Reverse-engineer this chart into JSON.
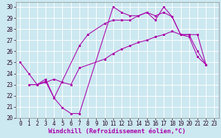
{
  "xlabel": "Windchill (Refroidissement éolien,°C)",
  "background_color": "#cce8f0",
  "grid_color": "#ffffff",
  "line_color": "#aa00aa",
  "xlim": [
    -0.5,
    23.5
  ],
  "ylim": [
    20,
    30.4
  ],
  "xticks": [
    0,
    1,
    2,
    3,
    4,
    5,
    6,
    7,
    8,
    9,
    10,
    11,
    12,
    13,
    14,
    15,
    16,
    17,
    18,
    19,
    20,
    21,
    22,
    23
  ],
  "yticks": [
    20,
    21,
    22,
    23,
    24,
    25,
    26,
    27,
    28,
    29,
    30
  ],
  "line1_x": [
    0,
    1,
    2,
    3,
    4,
    5,
    6,
    7,
    11,
    12,
    13,
    14,
    15,
    16,
    17,
    18,
    19,
    21,
    22
  ],
  "line1_y": [
    25.0,
    24.0,
    23.0,
    23.5,
    21.8,
    20.9,
    20.4,
    20.4,
    30.0,
    29.5,
    29.2,
    29.2,
    29.5,
    28.8,
    30.0,
    29.1,
    27.5,
    27.5,
    24.8
  ],
  "line2_x": [
    1,
    2,
    3,
    4,
    7,
    8,
    10,
    11,
    12,
    13,
    14,
    15,
    16,
    17,
    18,
    19,
    20,
    21,
    22
  ],
  "line2_y": [
    23.0,
    23.0,
    23.3,
    21.8,
    26.5,
    27.5,
    28.5,
    28.8,
    28.8,
    28.8,
    29.2,
    29.5,
    29.2,
    29.5,
    29.1,
    27.5,
    27.5,
    26.0,
    24.8
  ],
  "line3_x": [
    1,
    2,
    3,
    4,
    5,
    6,
    7,
    10,
    11,
    12,
    13,
    14,
    15,
    16,
    17,
    18,
    19,
    20,
    21,
    22
  ],
  "line3_y": [
    23.0,
    23.0,
    23.2,
    23.5,
    23.2,
    23.0,
    24.5,
    25.3,
    25.8,
    26.2,
    26.5,
    26.8,
    27.0,
    27.3,
    27.5,
    27.8,
    27.5,
    27.3,
    25.5,
    24.8
  ],
  "xlabel_fontsize": 6.5,
  "tick_fontsize": 5.5,
  "linewidth": 0.8,
  "markersize": 2.0
}
